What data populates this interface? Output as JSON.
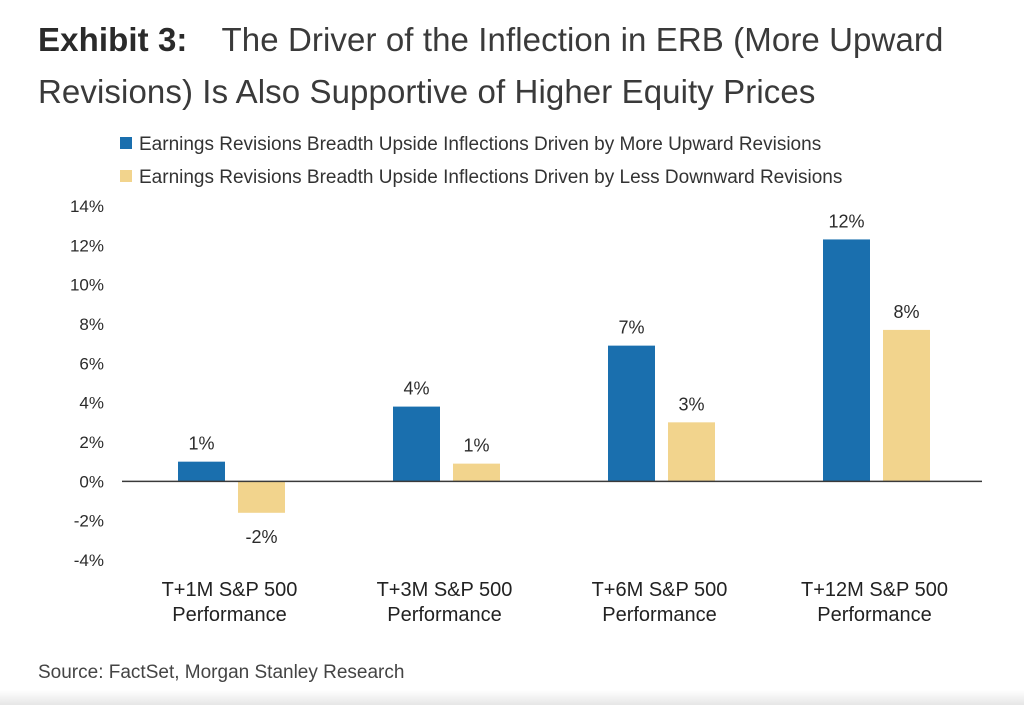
{
  "exhibit_label": "Exhibit 3:",
  "title": "The Driver of the Inflection in ERB (More Upward Revisions) Is Also Supportive of Higher Equity Prices",
  "source": "Source: FactSet, Morgan Stanley Research",
  "chart_data": {
    "type": "bar",
    "categories": [
      [
        "T+1M S&P 500",
        "Performance"
      ],
      [
        "T+3M S&P 500",
        "Performance"
      ],
      [
        "T+6M S&P 500",
        "Performance"
      ],
      [
        "T+12M S&P 500",
        "Performance"
      ]
    ],
    "series": [
      {
        "name": "Earnings Revisions Breadth Upside Inflections Driven by More Upward Revisions",
        "color": "#1a6fae",
        "values": [
          1.0,
          3.8,
          6.9,
          12.3
        ],
        "labels": [
          "1%",
          "4%",
          "7%",
          "12%"
        ]
      },
      {
        "name": "Earnings Revisions Breadth Upside Inflections Driven by Less Downward Revisions",
        "color": "#f2d48d",
        "values": [
          -1.6,
          0.9,
          3.0,
          7.7
        ],
        "labels": [
          "-2%",
          "1%",
          "3%",
          "8%"
        ]
      }
    ],
    "yticks": [
      "14%",
      "12%",
      "10%",
      "8%",
      "6%",
      "4%",
      "2%",
      "0%",
      "-2%",
      "-4%"
    ],
    "ylim": [
      -4,
      14
    ],
    "legend_position": "top-left",
    "grid": false
  }
}
